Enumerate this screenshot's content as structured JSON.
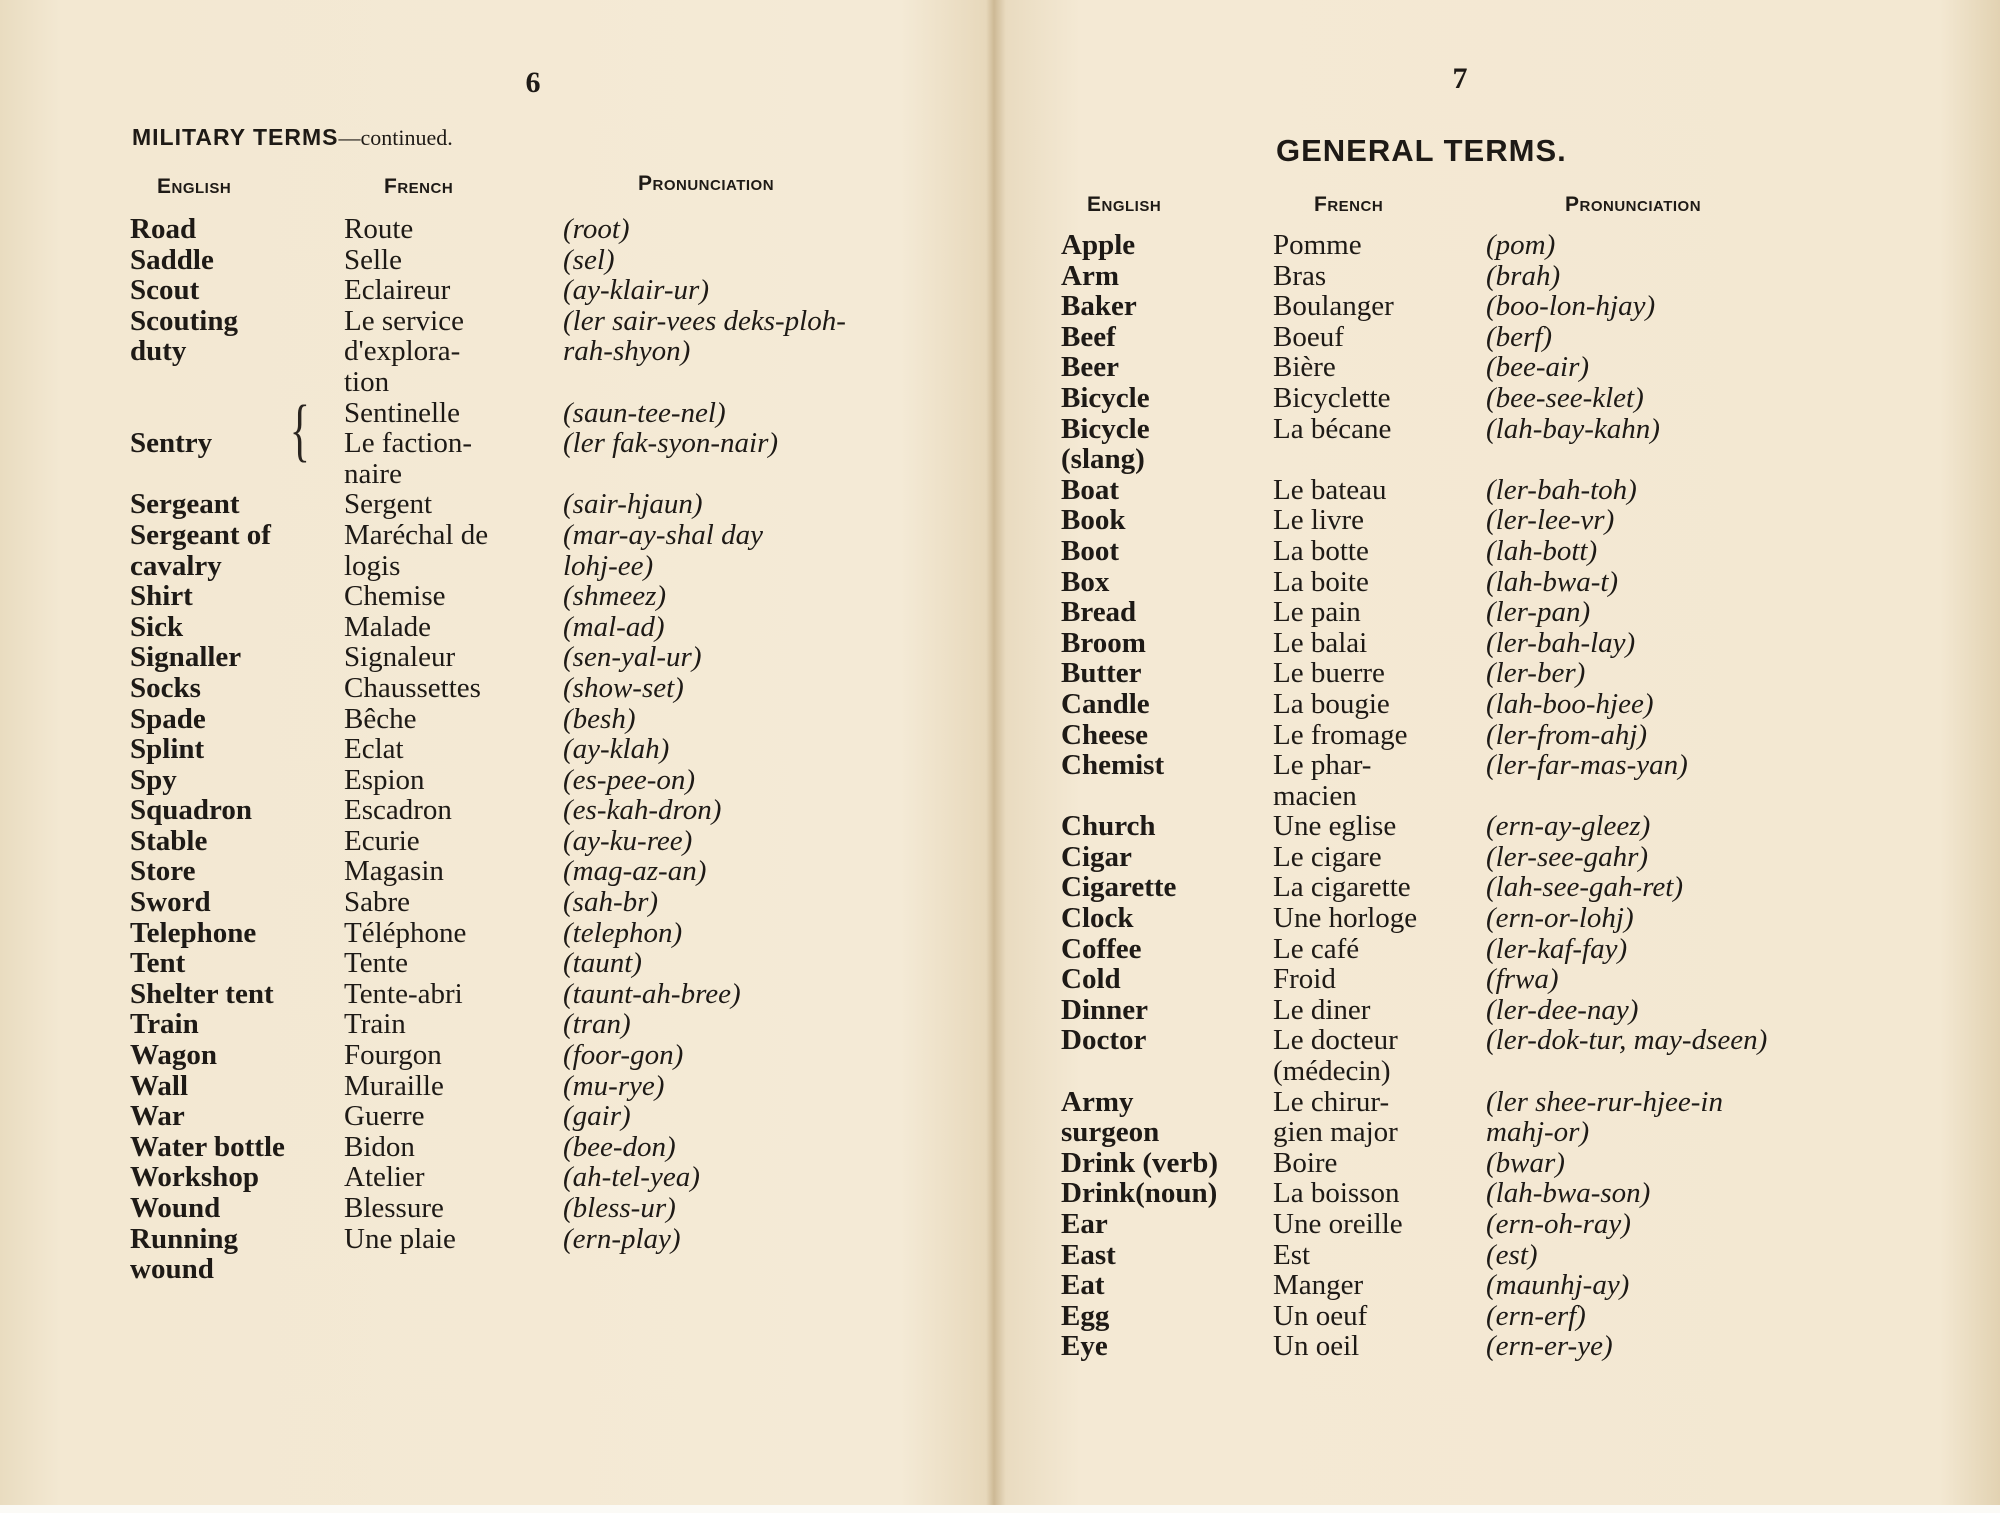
{
  "pages": [
    {
      "number": "6",
      "heading": "MILITARY TERMS",
      "heading_suffix": "—continued.",
      "columns": [
        "English",
        "French",
        "Pronunciation"
      ],
      "entries": [
        {
          "en": "Road",
          "fr": "Route",
          "pr": "(root)"
        },
        {
          "en": "Saddle",
          "fr": "Selle",
          "pr": "(sel)"
        },
        {
          "en": "Scout",
          "fr": "Eclaireur",
          "pr": "(ay-klair-ur)"
        },
        {
          "en": "Scouting\n duty",
          "fr": "Le service\n d'explora-\n tion",
          "pr": "(ler sair-vees deks-ploh-\n   rah-shyon)"
        },
        {
          "en": "",
          "fr": "Sentinelle",
          "pr": "(saun-tee-nel)"
        },
        {
          "en": "Sentry",
          "fr": "Le faction-\n naire",
          "pr": "(ler fak-syon-nair)"
        },
        {
          "en": "Sergeant",
          "fr": "Sergent",
          "pr": "(sair-hjaun)"
        },
        {
          "en": "Sergeant of\n cavalry",
          "fr": "Maréchal de\n logis",
          "pr": "(mar-ay-shal day\n   lohj-ee)"
        },
        {
          "en": "Shirt",
          "fr": "Chemise",
          "pr": "(shmeez)"
        },
        {
          "en": "Sick",
          "fr": "Malade",
          "pr": "(mal-ad)"
        },
        {
          "en": "Signaller",
          "fr": "Signaleur",
          "pr": "(sen-yal-ur)"
        },
        {
          "en": "Socks",
          "fr": "Chaussettes",
          "pr": "(show-set)"
        },
        {
          "en": "Spade",
          "fr": "Bêche",
          "pr": "(besh)"
        },
        {
          "en": "Splint",
          "fr": "Eclat",
          "pr": "(ay-klah)"
        },
        {
          "en": "Spy",
          "fr": "Espion",
          "pr": "(es-pee-on)"
        },
        {
          "en": "Squadron",
          "fr": "Escadron",
          "pr": "(es-kah-dron)"
        },
        {
          "en": "Stable",
          "fr": "Ecurie",
          "pr": "(ay-ku-ree)"
        },
        {
          "en": "Store",
          "fr": "Magasin",
          "pr": "(mag-az-an)"
        },
        {
          "en": "Sword",
          "fr": "Sabre",
          "pr": "(sah-br)"
        },
        {
          "en": "Telephone",
          "fr": "Téléphone",
          "pr": "(telephon)"
        },
        {
          "en": "Tent",
          "fr": "Tente",
          "pr": "(taunt)"
        },
        {
          "en": "Shelter tent",
          "fr": "Tente-abri",
          "pr": "(taunt-ah-bree)"
        },
        {
          "en": "Train",
          "fr": "Train",
          "pr": "(tran)"
        },
        {
          "en": "Wagon",
          "fr": "Fourgon",
          "pr": "(foor-gon)"
        },
        {
          "en": "Wall",
          "fr": "Muraille",
          "pr": "(mu-rye)"
        },
        {
          "en": "War",
          "fr": "Guerre",
          "pr": "(gair)"
        },
        {
          "en": "Water bottle",
          "fr": "Bidon",
          "pr": "(bee-don)"
        },
        {
          "en": "Workshop",
          "fr": "Atelier",
          "pr": "(ah-tel-yea)"
        },
        {
          "en": "Wound",
          "fr": "Blessure",
          "pr": "(bless-ur)"
        },
        {
          "en": "Running\n wound",
          "fr": "Une plaie",
          "pr": "(ern-play)"
        }
      ]
    },
    {
      "number": "7",
      "heading": "GENERAL TERMS.",
      "columns": [
        "English",
        "French",
        "Pronunciation"
      ],
      "entries": [
        {
          "en": "Apple",
          "fr": "Pomme",
          "pr": "(pom)"
        },
        {
          "en": "Arm",
          "fr": "Bras",
          "pr": "(brah)"
        },
        {
          "en": "Baker",
          "fr": "Boulanger",
          "pr": "(boo-lon-hjay)"
        },
        {
          "en": "Beef",
          "fr": "Boeuf",
          "pr": "(berf)"
        },
        {
          "en": "Beer",
          "fr": "Bière",
          "pr": "(bee-air)"
        },
        {
          "en": "Bicycle",
          "fr": "Bicyclette",
          "pr": "(bee-see-klet)"
        },
        {
          "en": "Bicycle\n (slang)",
          "fr": "La bécane",
          "pr": "(lah-bay-kahn)"
        },
        {
          "en": "Boat",
          "fr": "Le bateau",
          "pr": "(ler-bah-toh)"
        },
        {
          "en": "Book",
          "fr": "Le livre",
          "pr": "(ler-lee-vr)"
        },
        {
          "en": "Boot",
          "fr": "La botte",
          "pr": "(lah-bott)"
        },
        {
          "en": "Box",
          "fr": "La boite",
          "pr": "(lah-bwa-t)"
        },
        {
          "en": "Bread",
          "fr": "Le pain",
          "pr": "(ler-pan)"
        },
        {
          "en": "Broom",
          "fr": "Le balai",
          "pr": "(ler-bah-lay)"
        },
        {
          "en": "Butter",
          "fr": "Le buerre",
          "pr": "(ler-ber)"
        },
        {
          "en": "Candle",
          "fr": "La bougie",
          "pr": "(lah-boo-hjee)"
        },
        {
          "en": "Cheese",
          "fr": "Le fromage",
          "pr": "(ler-from-ahj)"
        },
        {
          "en": "Chemist",
          "fr": "Le phar-\n macien",
          "pr": "(ler-far-mas-yan)"
        },
        {
          "en": "Church",
          "fr": "Une eglise",
          "pr": "(ern-ay-gleez)"
        },
        {
          "en": "Cigar",
          "fr": "Le cigare",
          "pr": "(ler-see-gahr)"
        },
        {
          "en": "Cigarette",
          "fr": "La cigarette",
          "pr": "(lah-see-gah-ret)"
        },
        {
          "en": "Clock",
          "fr": "Une horloge",
          "pr": "(ern-or-lohj)"
        },
        {
          "en": "Coffee",
          "fr": "Le café",
          "pr": "(ler-kaf-fay)"
        },
        {
          "en": "Cold",
          "fr": "Froid",
          "pr": "(frwa)"
        },
        {
          "en": "Dinner",
          "fr": "Le diner",
          "pr": "(ler-dee-nay)"
        },
        {
          "en": "Doctor",
          "fr": "Le docteur\n (médecin)",
          "pr": "(ler-dok-tur,  may-dseen)"
        },
        {
          "en": "Army\n surgeon",
          "fr": "Le chirur-\n gien  major",
          "pr": "(ler  shee-rur-hjee-in\n   mahj-or)"
        },
        {
          "en": "Drink (verb)",
          "fr": "Boire",
          "pr": "(bwar)"
        },
        {
          "en": "Drink(noun)",
          "fr": "La boisson",
          "pr": "(lah-bwa-son)"
        },
        {
          "en": "Ear",
          "fr": "Une oreille",
          "pr": "(ern-oh-ray)"
        },
        {
          "en": "East",
          "fr": "Est",
          "pr": "(est)"
        },
        {
          "en": "Eat",
          "fr": "Manger",
          "pr": "(maunhj-ay)"
        },
        {
          "en": "Egg",
          "fr": "Un oeuf",
          "pr": "(ern-erf)"
        },
        {
          "en": "Eye",
          "fr": "Un oeil",
          "pr": "(ern-er-ye)"
        }
      ]
    }
  ],
  "colors": {
    "paper": "#f3e8d2",
    "ink": "#1e1a16",
    "gutter": "#cdb995"
  }
}
